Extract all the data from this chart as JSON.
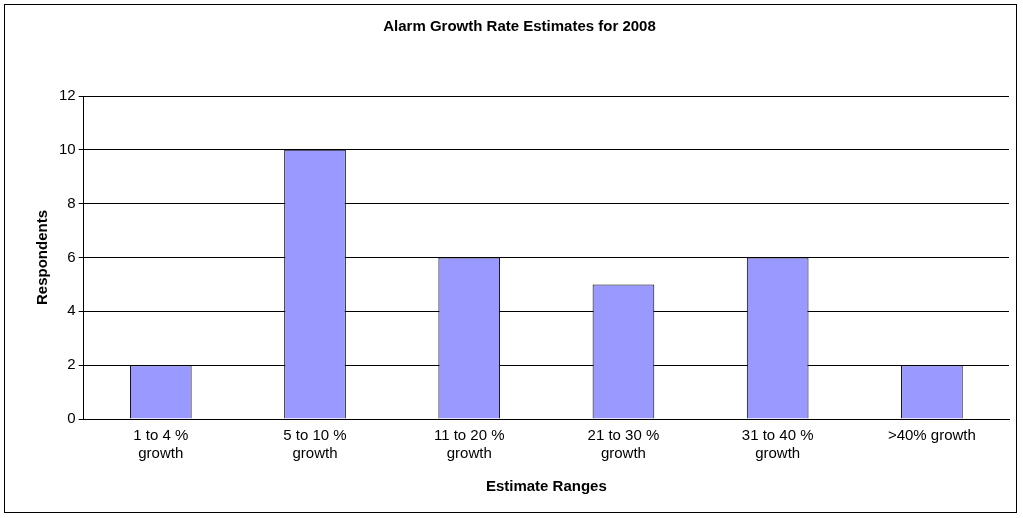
{
  "chart_data": {
    "type": "bar",
    "title": "Alarm Growth Rate Estimates for 2008",
    "xlabel": "Estimate Ranges",
    "ylabel": "Respondents",
    "categories": [
      "1 to 4 % growth",
      "5 to 10 % growth",
      "11 to 20 % growth",
      "21 to 30 % growth",
      "31 to 40 % growth",
      ">40% growth"
    ],
    "values": [
      2,
      10,
      6,
      5,
      6,
      2
    ],
    "color": "#9999ff",
    "ylim": [
      0,
      12
    ],
    "yticks": [
      0,
      2,
      4,
      6,
      8,
      10,
      12
    ],
    "grid": "y",
    "legend": false
  }
}
